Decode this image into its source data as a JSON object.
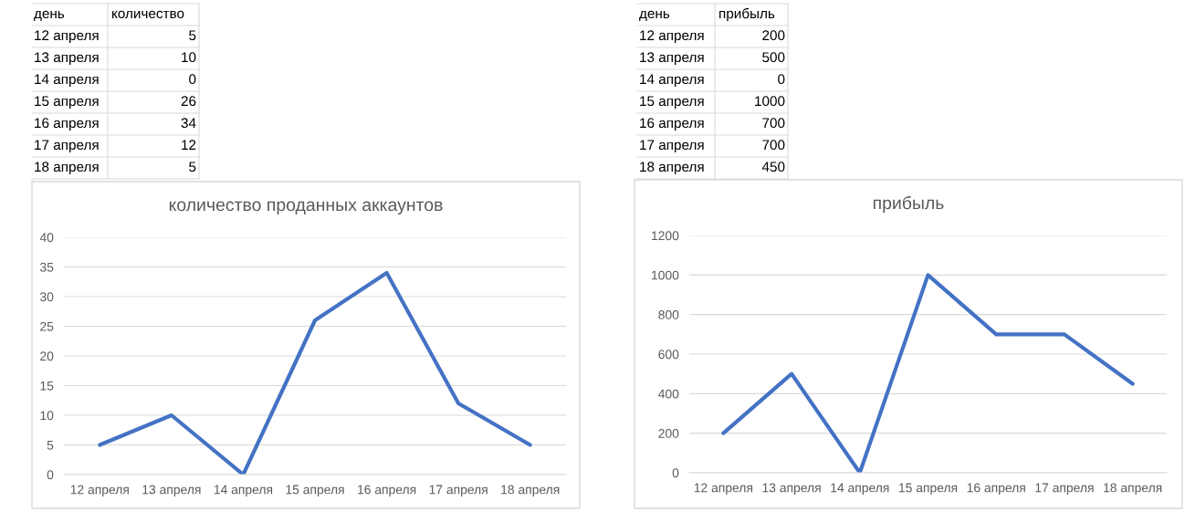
{
  "chart_data": [
    {
      "type": "other",
      "annotations": [
        "день",
        "количество",
        "12 апреля",
        "5",
        "13 апреля",
        "10",
        "14 апреля",
        "0",
        "15 апреля",
        "26",
        "16 апреля",
        "34",
        "17 апреля",
        "12",
        "18 апреля",
        "5"
      ]
    },
    {
      "type": "line",
      "title": "количество проданных аккаунтов",
      "categories": [
        "12 апреля",
        "13 апреля",
        "14 апреля",
        "15 апреля",
        "16 апреля",
        "17 апреля",
        "18 апреля"
      ],
      "series": [
        {
          "color": "#4472c4",
          "values": [
            5,
            10,
            0,
            26,
            34,
            12,
            5
          ]
        }
      ],
      "ylim": [
        0,
        40
      ],
      "yticks": [
        0,
        5,
        10,
        15,
        20,
        25,
        30,
        35,
        40
      ],
      "grid": "y"
    },
    {
      "type": "other",
      "annotations": [
        "день",
        "прибыль",
        "12 апреля",
        "200",
        "13 апреля",
        "500",
        "14 апреля",
        "0",
        "15 апреля",
        "1000",
        "16 апреля",
        "700",
        "17 апреля",
        "700",
        "18 апреля",
        "450"
      ]
    },
    {
      "type": "line",
      "title": "прибыль",
      "categories": [
        "12 апреля",
        "13 апреля",
        "14 апреля",
        "15 апреля",
        "16 апреля",
        "17 апреля",
        "18 апреля"
      ],
      "series": [
        {
          "color": "#4472c4",
          "values": [
            200,
            500,
            0,
            1000,
            700,
            700,
            450
          ]
        }
      ],
      "ylim": [
        0,
        1200
      ],
      "yticks": [
        0,
        200,
        400,
        600,
        800,
        1000,
        1200
      ],
      "grid": "y"
    }
  ]
}
